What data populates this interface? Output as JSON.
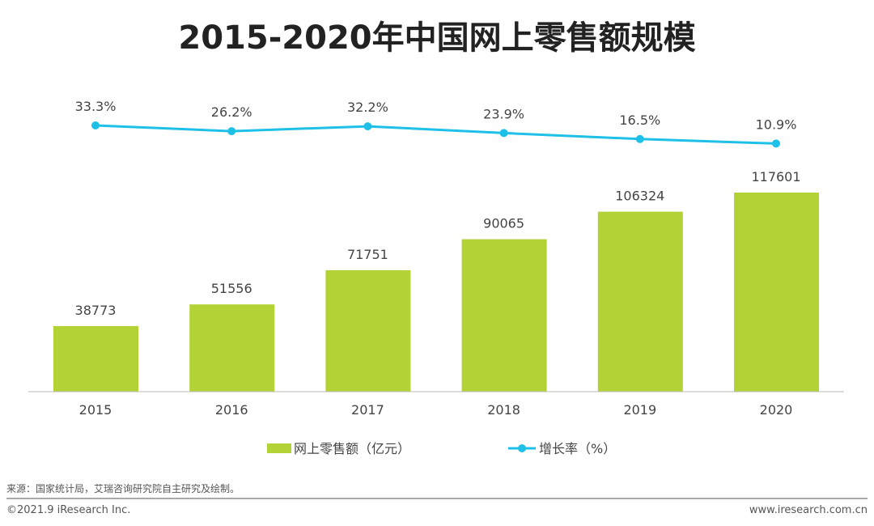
{
  "chart_data": {
    "type": "bar",
    "title": "2015-2020年中国网上零售额规模",
    "categories": [
      "2015",
      "2016",
      "2017",
      "2018",
      "2019",
      "2020"
    ],
    "series": [
      {
        "name": "网上零售额（亿元）",
        "type": "bar",
        "values": [
          38773,
          51556,
          71751,
          90065,
          106324,
          117601
        ],
        "labels": [
          "38773",
          "51556",
          "71751",
          "90065",
          "106324",
          "117601"
        ]
      },
      {
        "name": "增长率（%）",
        "type": "line",
        "values": [
          33.3,
          26.2,
          32.2,
          23.9,
          16.5,
          10.9
        ],
        "labels": [
          "33.3%",
          "26.2%",
          "32.2%",
          "23.9%",
          "16.5%",
          "10.9%"
        ]
      }
    ],
    "legend_position": "bottom",
    "grid": false,
    "colors": {
      "bar": "#b2d235",
      "line": "#1fc0e8"
    }
  },
  "footer": {
    "source": "来源：国家统计局，艾瑞咨询研究院自主研究及绘制。",
    "copyright": "©2021.9 iResearch Inc.",
    "website": "www.iresearch.com.cn"
  }
}
